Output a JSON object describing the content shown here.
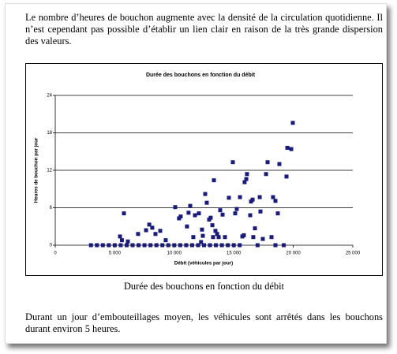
{
  "paragraphs": [
    "Le nombre d’heures de bouchon augmente avec la densité de la circulation quotidienne. Il n’est cependant pas possible d’établir un lien clair en raison de la très grande dispersion des valeurs.",
    "Durant un jour d’embouteillages moyen, les véhicules sont arrêtés dans les bouchons durant environ 5 heures."
  ],
  "caption": "Durée des bouchons en fonction du débit",
  "chart_data": {
    "type": "scatter",
    "title": "Durée des bouchons en fonction du débit",
    "x_label": "Débit (véhicules par jour)",
    "y_label": "Heures de bouchon par jour",
    "color": "#1a1a78",
    "grid": true,
    "xlim": [
      0,
      25000
    ],
    "ylim": [
      0,
      24
    ],
    "xticks": [
      0,
      {
        "value": 5000,
        "label": "5 000"
      },
      {
        "value": 10000,
        "label": "10 000"
      },
      {
        "value": 15000,
        "label": "15 000"
      },
      {
        "value": 20000,
        "label": "20 000"
      },
      {
        "value": 25000,
        "label": "25 000"
      }
    ],
    "yticks": [
      0,
      6,
      12,
      18,
      24
    ],
    "x": [
      3000,
      3500,
      4000,
      4500,
      5000,
      5500,
      6000,
      6500,
      7000,
      7500,
      8000,
      8500,
      9000,
      9500,
      10000,
      10500,
      11000,
      11500,
      12000,
      12500,
      13000,
      13500,
      14000,
      14500,
      15000,
      15500,
      17000,
      18500,
      19200,
      5770,
      5440,
      5600,
      6100,
      6960,
      7630,
      7900,
      8150,
      8420,
      8820,
      9280,
      10080,
      10400,
      10540,
      11070,
      11200,
      11340,
      11600,
      11740,
      12070,
      12330,
      12400,
      12250,
      12600,
      12730,
      12930,
      13060,
      13200,
      13260,
      13330,
      13460,
      13600,
      13730,
      13860,
      14060,
      14260,
      14590,
      14920,
      15120,
      15250,
      15520,
      15720,
      15850,
      15910,
      16050,
      16110,
      16380,
      16450,
      16580,
      16640,
      16780,
      17180,
      17240,
      17440,
      17710,
      17840,
      18170,
      18300,
      18500,
      18700,
      18830,
      19430,
      19500,
      19830,
      19960
    ],
    "y": [
      0,
      0,
      0,
      0,
      0,
      0,
      0,
      0,
      0,
      0,
      0,
      0,
      0,
      0,
      0,
      0,
      0,
      0,
      0,
      0,
      0,
      0,
      0,
      0,
      0,
      0,
      0,
      0,
      0,
      5.1,
      1.4,
      0.8,
      0.6,
      1.8,
      2.4,
      3.3,
      2.8,
      1.8,
      2.3,
      0.8,
      6.1,
      4.3,
      4.6,
      3.0,
      5.2,
      6.3,
      1.3,
      4.8,
      5.1,
      2.5,
      1.5,
      0.5,
      8.2,
      6.8,
      4.1,
      4.4,
      3.2,
      1.3,
      10.4,
      2.3,
      1.8,
      1.3,
      5.6,
      4.9,
      1.3,
      7.6,
      13.3,
      5.1,
      5.8,
      7.7,
      1.4,
      1.6,
      10.1,
      10.6,
      11.4,
      4.8,
      7.0,
      7.3,
      1.3,
      2.7,
      7.7,
      5.4,
      1.0,
      11.4,
      13.3,
      1.3,
      7.7,
      7.1,
      5.1,
      13.0,
      11.0,
      15.6,
      15.4,
      19.6
    ]
  }
}
